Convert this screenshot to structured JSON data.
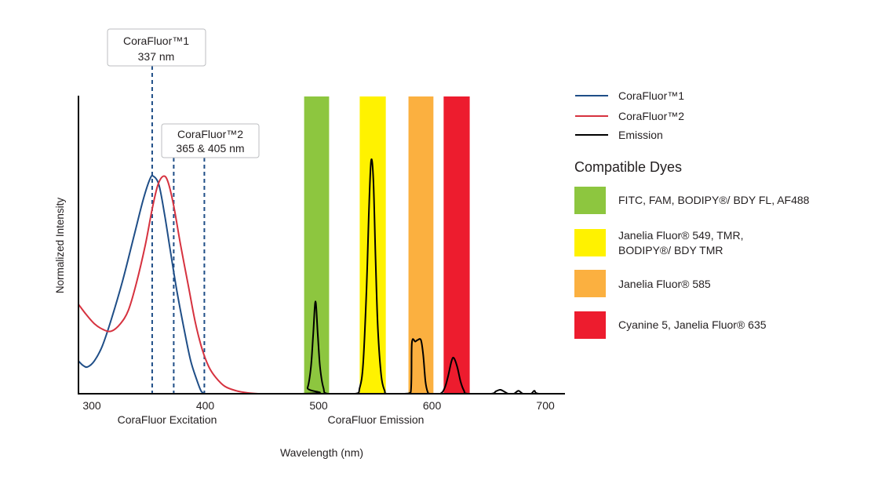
{
  "chart_data": {
    "type": "line",
    "xlabel": "Wavelength (nm)",
    "ylabel": "Normalized Intensity",
    "xlim": [
      291,
      720
    ],
    "ylim": [
      0,
      1
    ],
    "grid": false,
    "legend_placement": "right",
    "x_ticks": [
      "300",
      "400",
      "500",
      "600",
      "700"
    ],
    "x_tick_values": [
      300,
      400,
      500,
      600,
      700
    ],
    "section_labels": {
      "excitation": "CoraFluor Excitation",
      "emission": "CoraFluor Emission"
    },
    "series": [
      {
        "name": "CoraFluor™1",
        "color": "#1f4e87",
        "points": [
          [
            291,
            0.11
          ],
          [
            295,
            0.095
          ],
          [
            299,
            0.09
          ],
          [
            305,
            0.11
          ],
          [
            312,
            0.16
          ],
          [
            320,
            0.25
          ],
          [
            330,
            0.38
          ],
          [
            340,
            0.53
          ],
          [
            348,
            0.65
          ],
          [
            354,
            0.72
          ],
          [
            357,
            0.73
          ],
          [
            362,
            0.7
          ],
          [
            367,
            0.6
          ],
          [
            372,
            0.48
          ],
          [
            378,
            0.34
          ],
          [
            385,
            0.2
          ],
          [
            390,
            0.11
          ],
          [
            395,
            0.05
          ],
          [
            399,
            0.01
          ],
          [
            402,
            0
          ]
        ]
      },
      {
        "name": "CoraFluor™2",
        "color": "#d6323f",
        "points": [
          [
            291,
            0.3
          ],
          [
            298,
            0.265
          ],
          [
            305,
            0.235
          ],
          [
            313,
            0.215
          ],
          [
            320,
            0.21
          ],
          [
            328,
            0.235
          ],
          [
            335,
            0.28
          ],
          [
            342,
            0.37
          ],
          [
            350,
            0.5
          ],
          [
            356,
            0.62
          ],
          [
            361,
            0.7
          ],
          [
            366,
            0.73
          ],
          [
            370,
            0.71
          ],
          [
            375,
            0.63
          ],
          [
            381,
            0.5
          ],
          [
            388,
            0.36
          ],
          [
            394,
            0.24
          ],
          [
            400,
            0.15
          ],
          [
            406,
            0.09
          ],
          [
            412,
            0.055
          ],
          [
            420,
            0.025
          ],
          [
            430,
            0.01
          ],
          [
            440,
            0.003
          ],
          [
            450,
            0
          ]
        ]
      },
      {
        "name": "Emission",
        "color": "#000000",
        "points": [
          [
            291,
            0
          ],
          [
            488,
            0
          ],
          [
            493,
            0.02
          ],
          [
            496,
            0.09
          ],
          [
            498,
            0.2
          ],
          [
            500,
            0.31
          ],
          [
            502,
            0.2
          ],
          [
            504,
            0.09
          ],
          [
            507,
            0.02
          ],
          [
            511,
            0
          ],
          [
            535,
            0
          ],
          [
            539,
            0.02
          ],
          [
            542,
            0.1
          ],
          [
            545,
            0.35
          ],
          [
            547,
            0.6
          ],
          [
            549,
            0.78
          ],
          [
            551,
            0.72
          ],
          [
            553,
            0.45
          ],
          [
            555,
            0.22
          ],
          [
            558,
            0.06
          ],
          [
            561,
            0.01
          ],
          [
            563,
            0
          ],
          [
            578,
            0
          ],
          [
            584,
            0.005
          ],
          [
            585,
            0.17
          ],
          [
            588,
            0.175
          ],
          [
            590,
            0.18
          ],
          [
            593,
            0.18
          ],
          [
            595,
            0.13
          ],
          [
            597,
            0.04
          ],
          [
            599,
            0.005
          ],
          [
            601,
            0
          ],
          [
            610,
            0
          ],
          [
            614,
            0.02
          ],
          [
            617,
            0.06
          ],
          [
            620,
            0.11
          ],
          [
            622,
            0.12
          ],
          [
            625,
            0.09
          ],
          [
            628,
            0.04
          ],
          [
            631,
            0.01
          ],
          [
            634,
            0
          ],
          [
            655,
            0
          ],
          [
            659,
            0.008
          ],
          [
            663,
            0.013
          ],
          [
            667,
            0.006
          ],
          [
            670,
            0
          ],
          [
            675,
            0
          ],
          [
            679,
            0.01
          ],
          [
            683,
            0
          ],
          [
            690,
            0
          ],
          [
            693,
            0.01
          ],
          [
            697,
            0
          ],
          [
            720,
            0
          ]
        ]
      }
    ],
    "dye_bands": [
      {
        "range": [
          490,
          512
        ],
        "color": "#8dc63f",
        "label": "FITC, FAM, BODIPY®/ BDY FL, AF488"
      },
      {
        "range": [
          539,
          562
        ],
        "color": "#fff200",
        "label": "Janelia Fluor® 549, TMR,",
        "label2": "BODIPY®/ BDY TMR"
      },
      {
        "range": [
          582,
          604
        ],
        "color": "#fbb040",
        "label": "Janelia Fluor® 585"
      },
      {
        "range": [
          613,
          636
        ],
        "color": "#ed1c2e",
        "label": "Cyanine 5, Janelia Fluor® 635"
      }
    ],
    "excitation_markers": [
      {
        "x": 356,
        "series": "CoraFluor™1"
      },
      {
        "x": 375,
        "series": "CoraFluor™2"
      },
      {
        "x": 402,
        "series": "CoraFluor™2"
      }
    ],
    "annotations": [
      {
        "line1": "CoraFluor™1",
        "line2": "337 nm"
      },
      {
        "line1": "CoraFluor™2",
        "line2": "365 & 405 nm"
      }
    ],
    "legend_title": "Compatible Dyes"
  }
}
